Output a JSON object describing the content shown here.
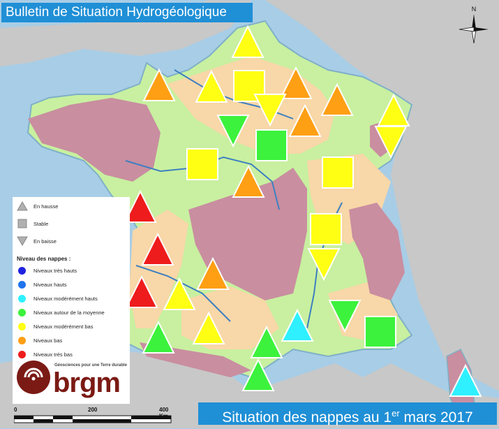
{
  "title": "Bulletin de Situation Hydrogéologique",
  "footer": {
    "prefix": "Situation des nappes au 1",
    "sup": "er",
    "suffix": " mars 2017"
  },
  "compass": {
    "label": "N"
  },
  "legend": {
    "trend": [
      {
        "shape": "triangle-up",
        "label": "En hausse"
      },
      {
        "shape": "square",
        "label": "Stable"
      },
      {
        "shape": "triangle-down",
        "label": "En baisse"
      }
    ],
    "levels_title": "Niveau des nappes :",
    "levels": [
      {
        "color": "#1f22e0",
        "label": "Niveaux très hauts"
      },
      {
        "color": "#1f74ee",
        "label": "Niveaux hauts"
      },
      {
        "color": "#2ff0ff",
        "label": "Niveaux modérément hauts"
      },
      {
        "color": "#3cf23c",
        "label": "Niveaux autour de la moyenne"
      },
      {
        "color": "#ffff14",
        "label": "Niveaux modérément bas"
      },
      {
        "color": "#ff9f14",
        "label": "Niveaux bas"
      },
      {
        "color": "#ee1c1c",
        "label": "Niveaux très bas"
      }
    ]
  },
  "logo": {
    "tagline": "Géosciences pour une Terre durable",
    "word": "brgm"
  },
  "scale": {
    "ticks": [
      "0",
      "200",
      "400 Km"
    ]
  },
  "markers": [
    {
      "id": "nord",
      "shape": "up",
      "color": "#ffff14"
    },
    {
      "id": "bretagne",
      "shape": "up",
      "color": "#ff9f14"
    },
    {
      "id": "normandie",
      "shape": "up",
      "color": "#ffff14"
    },
    {
      "id": "picardie",
      "shape": "square",
      "color": "#ffff14"
    },
    {
      "id": "champagne",
      "shape": "up",
      "color": "#ff9f14"
    },
    {
      "id": "lorraine",
      "shape": "up",
      "color": "#ff9f14"
    },
    {
      "id": "alsace-up",
      "shape": "up",
      "color": "#ffff14"
    },
    {
      "id": "alsace-down",
      "shape": "down",
      "color": "#ffff14"
    },
    {
      "id": "paris",
      "shape": "down",
      "color": "#ffff14"
    },
    {
      "id": "bourgogne-up",
      "shape": "up",
      "color": "#ff9f14"
    },
    {
      "id": "centre-down",
      "shape": "down",
      "color": "#3cf23c"
    },
    {
      "id": "centre-square",
      "shape": "square",
      "color": "#3cf23c"
    },
    {
      "id": "pays-loire",
      "shape": "square",
      "color": "#ffff14"
    },
    {
      "id": "franche-comte",
      "shape": "square",
      "color": "#ffff14"
    },
    {
      "id": "limousin-up",
      "shape": "up",
      "color": "#ff9f14"
    },
    {
      "id": "vendee",
      "shape": "up",
      "color": "#ee1c1c"
    },
    {
      "id": "charente",
      "shape": "up",
      "color": "#ee1c1c"
    },
    {
      "id": "rhone-square",
      "shape": "square",
      "color": "#ffff14"
    },
    {
      "id": "rhone-down",
      "shape": "down",
      "color": "#ffff14"
    },
    {
      "id": "gironde",
      "shape": "up",
      "color": "#ee1c1c"
    },
    {
      "id": "dordogne",
      "shape": "up",
      "color": "#ffff14"
    },
    {
      "id": "auvergne",
      "shape": "up",
      "color": "#ff9f14"
    },
    {
      "id": "provence-down",
      "shape": "down",
      "color": "#3cf23c"
    },
    {
      "id": "cote-azur",
      "shape": "square",
      "color": "#3cf23c"
    },
    {
      "id": "languedoc",
      "shape": "up",
      "color": "#2ff0ff"
    },
    {
      "id": "landes",
      "shape": "up",
      "color": "#3cf23c"
    },
    {
      "id": "midi",
      "shape": "up",
      "color": "#ffff14"
    },
    {
      "id": "aude",
      "shape": "up",
      "color": "#3cf23c"
    },
    {
      "id": "pyrenees",
      "shape": "up",
      "color": "#3cf23c"
    },
    {
      "id": "corse",
      "shape": "up",
      "color": "#2ff0ff"
    }
  ]
}
